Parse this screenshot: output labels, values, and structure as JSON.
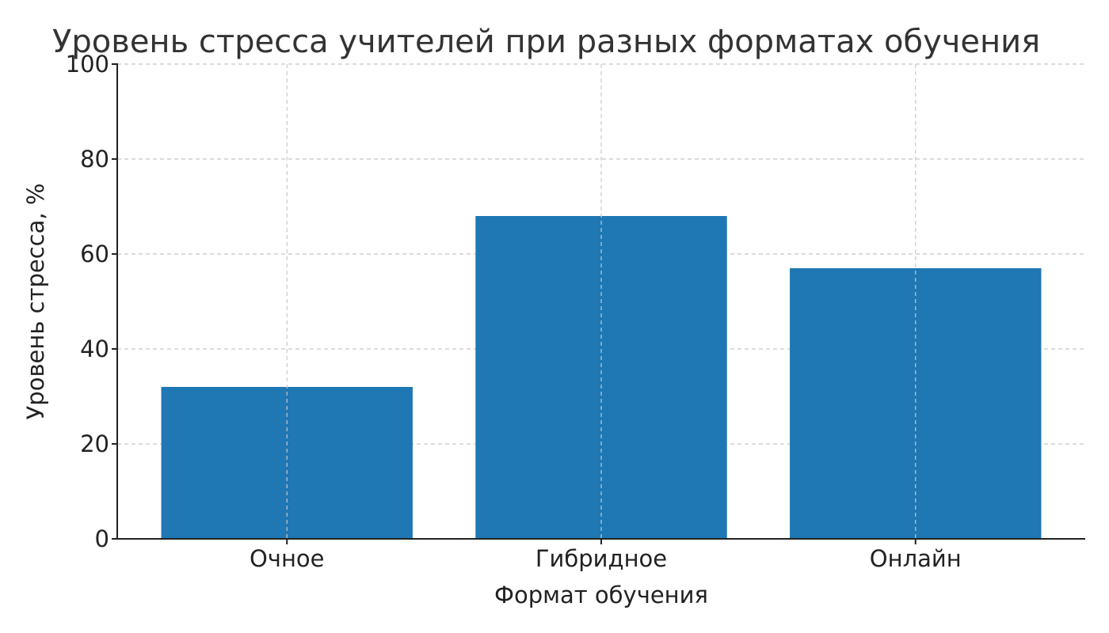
{
  "chart_data": {
    "type": "bar",
    "title": "Уровень стресса учителей при разных форматах обучения",
    "xlabel": "Формат обучения",
    "ylabel": "Уровень стресса, %",
    "categories": [
      "Очное",
      "Гибридное",
      "Онлайн"
    ],
    "values": [
      32,
      68,
      57
    ],
    "ylim": [
      0,
      100
    ],
    "yticks": [
      0,
      20,
      40,
      60,
      80,
      100
    ],
    "grid": true,
    "bar_color": "#1f77b4"
  }
}
